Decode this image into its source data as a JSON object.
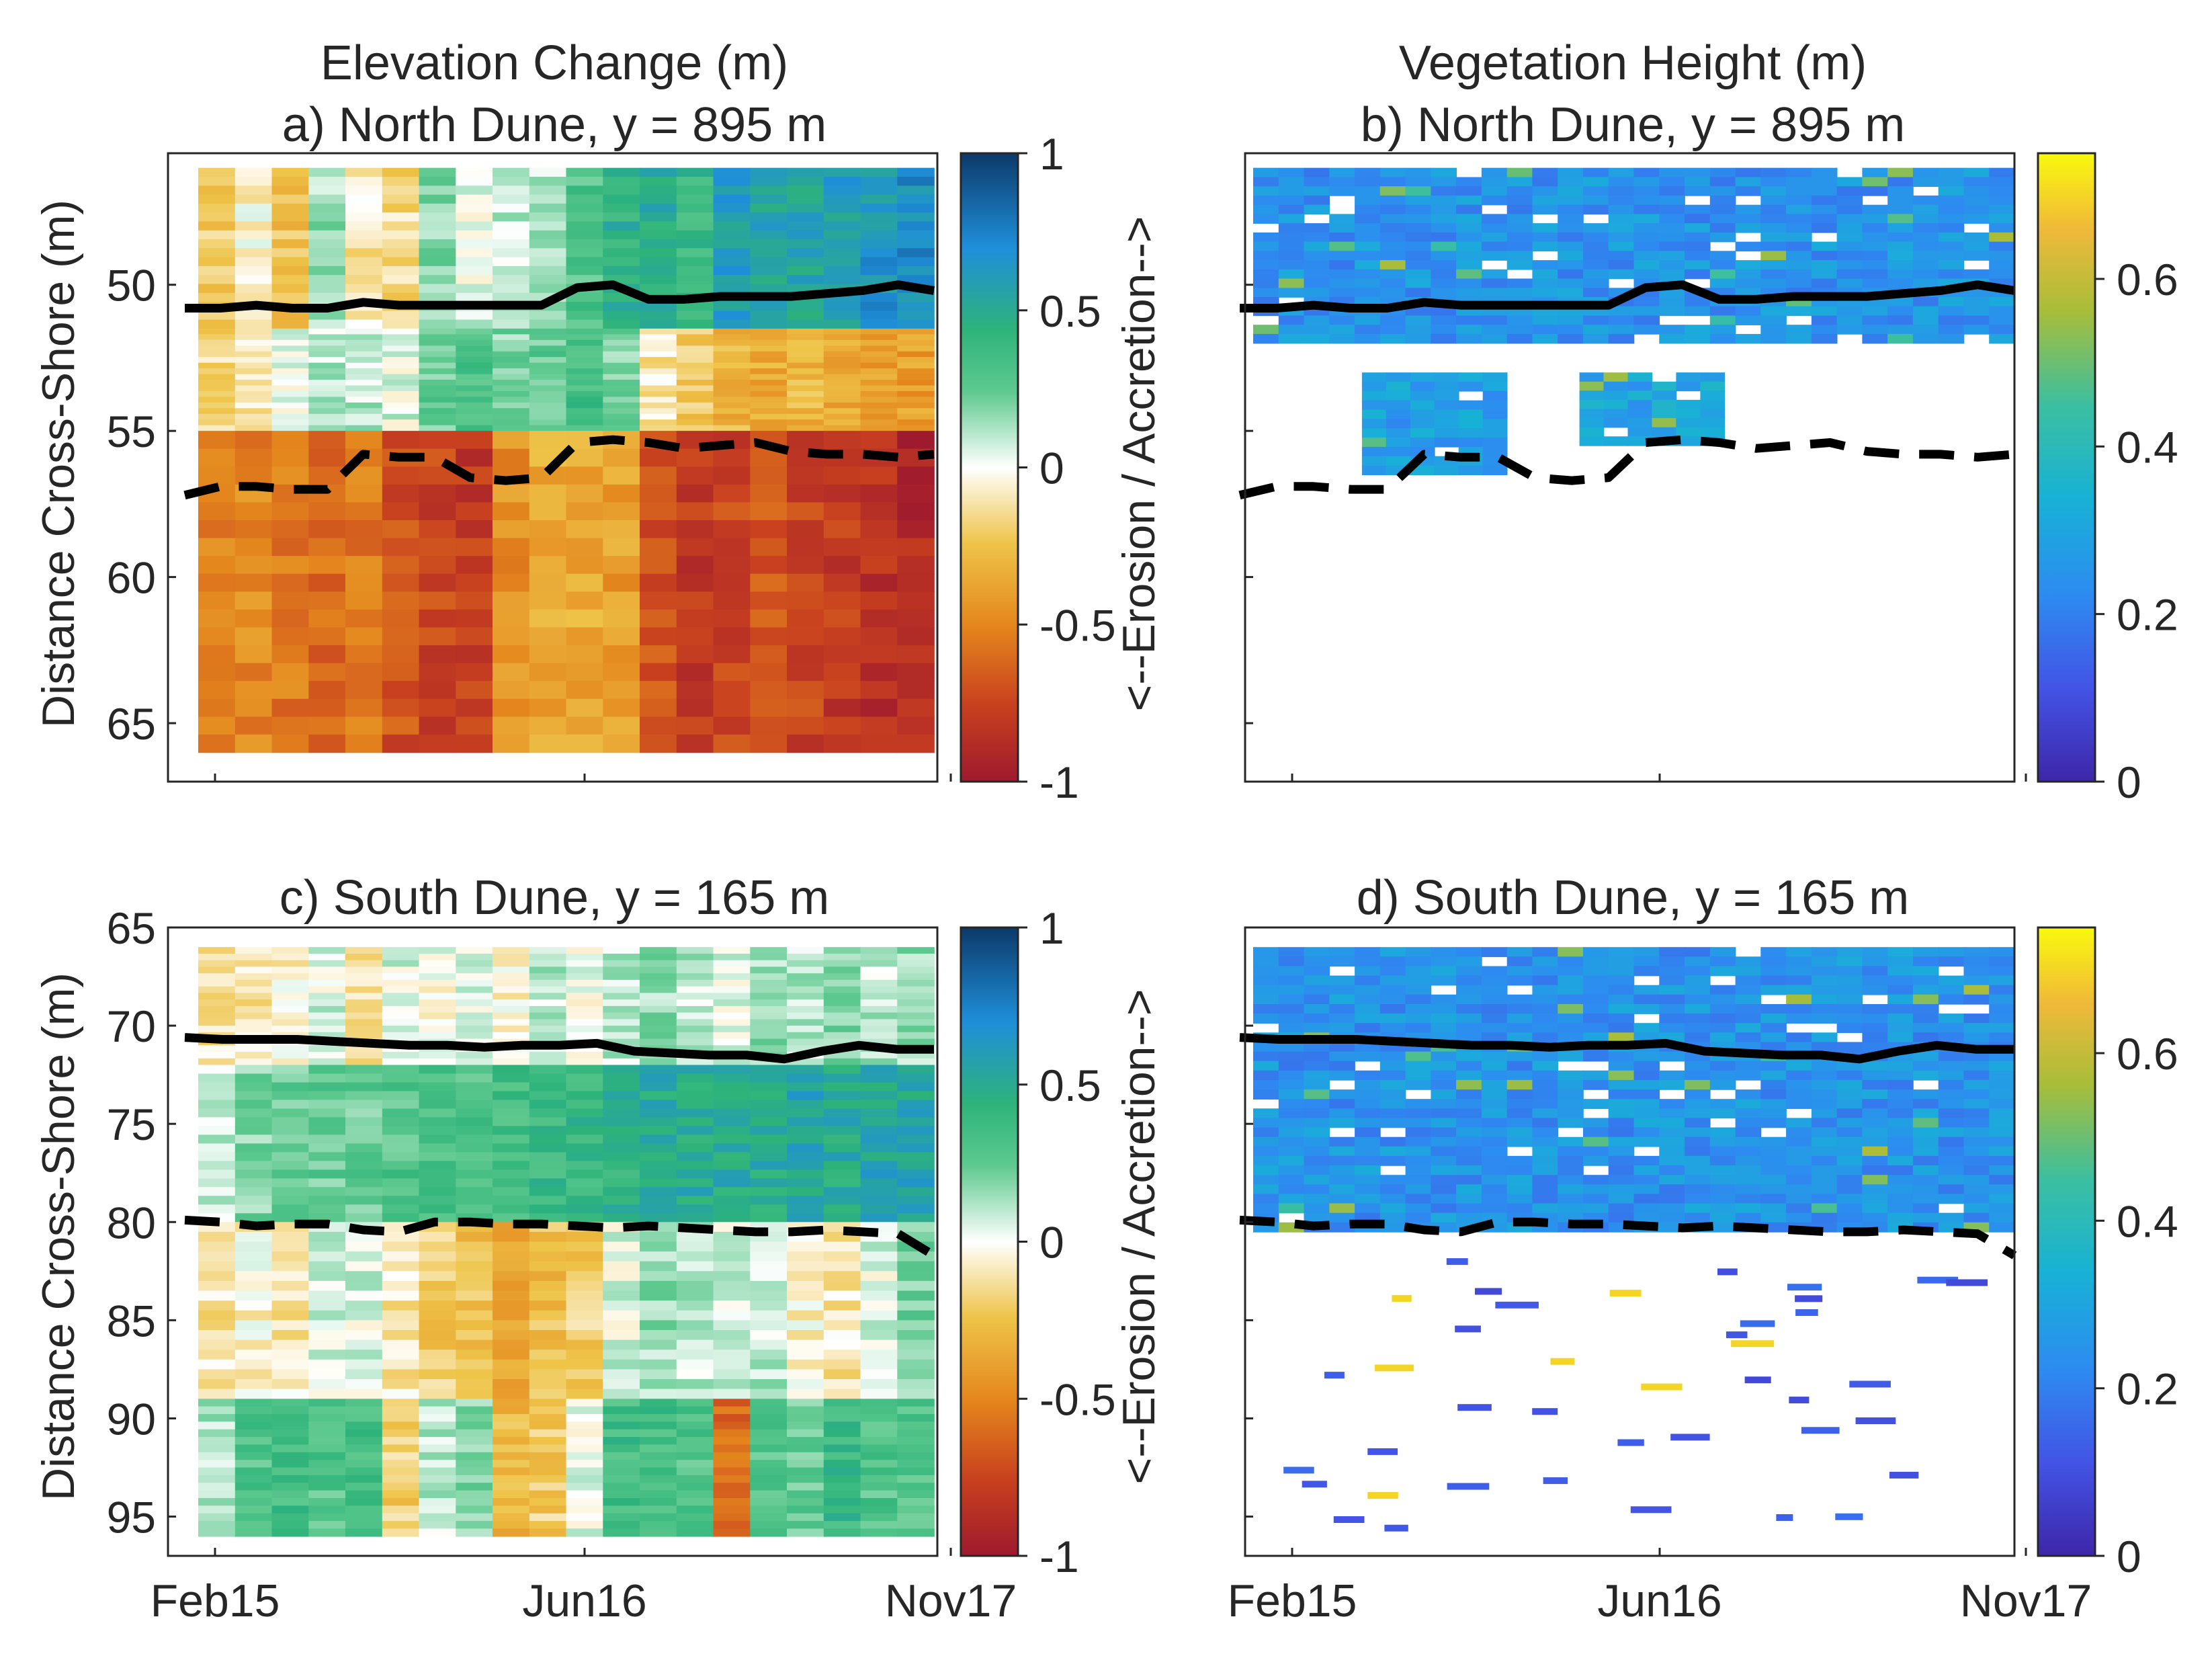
{
  "figure": {
    "colorbar_axis_label": "<--Erosion / Accretion-->",
    "x_axis_label": "",
    "x_ticks": [
      "Feb15",
      "Jun16",
      "Nov17"
    ]
  },
  "chart_data": [
    {
      "id": "a",
      "type": "heatmap",
      "title_top": "Elevation Change (m)",
      "title": "a) North Dune, y = 895 m",
      "xlabel": "",
      "ylabel": "Distance Cross-Shore (m)",
      "x_ticks": [
        "Feb15",
        "Jun16",
        "Nov17"
      ],
      "y_ticks": [
        50,
        55,
        60,
        65
      ],
      "ylim": [
        45.5,
        67
      ],
      "y_reversed": true,
      "colorbar": {
        "label": "<--Erosion / Accretion-->",
        "range": [
          -1,
          1
        ],
        "ticks": [
          "1",
          "0.5",
          "0",
          "-0.5",
          "-1"
        ],
        "colormap": "diverging brown-white-blue"
      },
      "row_boundaries": [
        46,
        51.5,
        55,
        66
      ],
      "column_values": [
        [
          -0.2,
          -0.05,
          -0.25,
          0.15,
          -0.1,
          -0.15,
          0.2,
          0.05,
          0.1,
          0.1,
          0.3,
          0.45,
          0.5,
          0.4,
          0.6,
          0.55,
          0.55,
          0.6,
          0.65,
          0.7
        ],
        [
          -0.15,
          -0.1,
          0.05,
          0.1,
          0.1,
          0.05,
          0.25,
          0.3,
          0.2,
          0.25,
          0.35,
          0.2,
          -0.1,
          -0.2,
          -0.3,
          -0.35,
          -0.3,
          -0.35,
          -0.4,
          -0.4
        ],
        [
          -0.5,
          -0.5,
          -0.55,
          -0.6,
          -0.55,
          -0.7,
          -0.75,
          -0.8,
          -0.45,
          -0.35,
          -0.35,
          -0.4,
          -0.7,
          -0.8,
          -0.75,
          -0.7,
          -0.75,
          -0.8,
          -0.85,
          -0.9
        ]
      ],
      "series": [
        {
          "name": "solid contour",
          "x": [
            0,
            1,
            2,
            3,
            4,
            5,
            6,
            7,
            8,
            9,
            10,
            11,
            12,
            13,
            14,
            15,
            16,
            17,
            18,
            19,
            20,
            21
          ],
          "y": [
            50.8,
            50.8,
            50.7,
            50.8,
            50.8,
            50.6,
            50.7,
            50.7,
            50.7,
            50.7,
            50.7,
            50.1,
            50.0,
            50.5,
            50.5,
            50.4,
            50.4,
            50.4,
            50.3,
            50.2,
            50.0,
            50.2
          ]
        },
        {
          "name": "dashed contour",
          "x": [
            0,
            1,
            2,
            3,
            4,
            5,
            6,
            7,
            8,
            9,
            10,
            11,
            12,
            13,
            14,
            15,
            16,
            17,
            18,
            19,
            20,
            21
          ],
          "y": [
            57.2,
            56.9,
            56.9,
            57.0,
            57.0,
            55.8,
            55.9,
            55.9,
            56.6,
            56.7,
            56.6,
            55.4,
            55.3,
            55.4,
            55.6,
            55.5,
            55.4,
            55.7,
            55.8,
            55.8,
            55.9,
            55.8
          ]
        }
      ]
    },
    {
      "id": "b",
      "type": "heatmap",
      "title_top": "Vegetation Height (m)",
      "title": "b) North Dune, y = 895 m",
      "xlabel": "",
      "ylabel": "",
      "x_ticks": [
        "Feb15",
        "Jun16",
        "Nov17"
      ],
      "ylim": [
        45.5,
        67
      ],
      "y_reversed": true,
      "colorbar": {
        "range": [
          0,
          0.75
        ],
        "ticks": [
          "0.6",
          "0.4",
          "0.2",
          "0"
        ],
        "colormap": "parula"
      },
      "patches": [
        {
          "x0": 0,
          "x1": 21,
          "y0": 46,
          "y1": 52,
          "value": 0.25
        },
        {
          "x0": 3,
          "x1": 7,
          "y0": 53,
          "y1": 56.5,
          "value": 0.28
        },
        {
          "x0": 9,
          "x1": 13,
          "y0": 53,
          "y1": 55.5,
          "value": 0.3
        }
      ],
      "series": [
        {
          "name": "solid contour",
          "x": [
            0,
            1,
            2,
            3,
            4,
            5,
            6,
            7,
            8,
            9,
            10,
            11,
            12,
            13,
            14,
            15,
            16,
            17,
            18,
            19,
            20,
            21
          ],
          "y": [
            50.8,
            50.8,
            50.7,
            50.8,
            50.8,
            50.6,
            50.7,
            50.7,
            50.7,
            50.7,
            50.7,
            50.1,
            50.0,
            50.5,
            50.5,
            50.4,
            50.4,
            50.4,
            50.3,
            50.2,
            50.0,
            50.2
          ]
        },
        {
          "name": "dashed contour",
          "x": [
            0,
            1,
            2,
            3,
            4,
            5,
            6,
            7,
            8,
            9,
            10,
            11,
            12,
            13,
            14,
            15,
            16,
            17,
            18,
            19,
            20,
            21
          ],
          "y": [
            57.2,
            56.9,
            56.9,
            57.0,
            57.0,
            55.8,
            55.9,
            55.9,
            56.6,
            56.7,
            56.6,
            55.4,
            55.3,
            55.4,
            55.6,
            55.5,
            55.4,
            55.7,
            55.8,
            55.8,
            55.9,
            55.8
          ]
        }
      ]
    },
    {
      "id": "c",
      "type": "heatmap",
      "title": "c) South Dune, y = 165 m",
      "xlabel": "",
      "ylabel": "Distance Cross-Shore (m)",
      "x_ticks": [
        "Feb15",
        "Jun16",
        "Nov17"
      ],
      "y_ticks": [
        65,
        70,
        75,
        80,
        85,
        90,
        95
      ],
      "ylim": [
        65,
        97
      ],
      "y_reversed": true,
      "colorbar": {
        "label": "<--Erosion / Accretion-->",
        "range": [
          -1,
          1
        ],
        "ticks": [
          "1",
          "0.5",
          "0",
          "-0.5",
          "-1"
        ],
        "colormap": "diverging brown-white-blue"
      },
      "row_boundaries": [
        66,
        72,
        80,
        89,
        96
      ],
      "column_values": [
        [
          -0.1,
          -0.1,
          -0.05,
          0.05,
          -0.1,
          0.05,
          0.0,
          0.05,
          -0.05,
          0.1,
          0.0,
          0.1,
          0.15,
          0.1,
          0.05,
          0.15,
          0.1,
          0.2,
          0.1,
          0.15
        ],
        [
          0.1,
          0.2,
          0.25,
          0.25,
          0.25,
          0.3,
          0.3,
          0.3,
          0.35,
          0.4,
          0.4,
          0.45,
          0.5,
          0.5,
          0.5,
          0.5,
          0.55,
          0.5,
          0.55,
          0.55
        ],
        [
          -0.1,
          -0.05,
          -0.1,
          0.05,
          0.05,
          -0.1,
          -0.2,
          -0.25,
          -0.35,
          -0.25,
          -0.2,
          0.05,
          0.15,
          0.1,
          0.05,
          0.1,
          -0.05,
          -0.1,
          0.05,
          0.2
        ],
        [
          0.1,
          0.3,
          0.35,
          0.3,
          0.35,
          -0.2,
          0.1,
          0.2,
          -0.3,
          -0.2,
          0.05,
          0.35,
          0.35,
          0.3,
          -0.6,
          0.3,
          0.25,
          0.4,
          0.3,
          0.3
        ]
      ],
      "series": [
        {
          "name": "solid contour",
          "x": [
            0,
            1,
            2,
            3,
            4,
            5,
            6,
            7,
            8,
            9,
            10,
            11,
            12,
            13,
            14,
            15,
            16,
            17,
            18,
            19,
            20
          ],
          "y": [
            70.6,
            70.7,
            70.7,
            70.7,
            70.8,
            70.9,
            71.0,
            71.0,
            71.1,
            71.0,
            71.0,
            70.9,
            71.3,
            71.4,
            71.5,
            71.5,
            71.7,
            71.3,
            71.0,
            71.2,
            71.2
          ]
        },
        {
          "name": "dashed contour",
          "x": [
            0,
            1,
            2,
            3,
            4,
            5,
            6,
            7,
            8,
            9,
            10,
            11,
            12,
            13,
            14,
            15,
            16,
            17,
            18,
            19,
            20,
            21
          ],
          "y": [
            79.9,
            80.0,
            80.2,
            80.1,
            80.1,
            80.4,
            80.5,
            80.0,
            80.0,
            80.1,
            80.1,
            80.2,
            80.3,
            80.2,
            80.3,
            80.4,
            80.5,
            80.5,
            80.4,
            80.5,
            80.6,
            81.7
          ]
        }
      ]
    },
    {
      "id": "d",
      "type": "heatmap",
      "title": "d) South Dune, y = 165 m",
      "xlabel": "",
      "ylabel": "",
      "x_ticks": [
        "Feb15",
        "Jun16",
        "Nov17"
      ],
      "ylim": [
        65,
        97
      ],
      "y_reversed": true,
      "colorbar": {
        "range": [
          0,
          0.75
        ],
        "ticks": [
          "0.6",
          "0.4",
          "0.2",
          "0"
        ],
        "colormap": "parula"
      },
      "patches": [
        {
          "x0": 0,
          "x1": 21,
          "y0": 66,
          "y1": 80.5,
          "value": 0.25
        }
      ],
      "series": [
        {
          "name": "solid contour",
          "x": [
            0,
            1,
            2,
            3,
            4,
            5,
            6,
            7,
            8,
            9,
            10,
            11,
            12,
            13,
            14,
            15,
            16,
            17,
            18,
            19,
            20
          ],
          "y": [
            70.6,
            70.7,
            70.7,
            70.7,
            70.8,
            70.9,
            71.0,
            71.0,
            71.1,
            71.0,
            71.0,
            70.9,
            71.3,
            71.4,
            71.5,
            71.5,
            71.7,
            71.3,
            71.0,
            71.2,
            71.2
          ]
        },
        {
          "name": "dashed contour",
          "x": [
            0,
            1,
            2,
            3,
            4,
            5,
            6,
            7,
            8,
            9,
            10,
            11,
            12,
            13,
            14,
            15,
            16,
            17,
            18,
            19,
            20,
            21
          ],
          "y": [
            79.9,
            80.0,
            80.2,
            80.1,
            80.1,
            80.4,
            80.5,
            80.0,
            80.0,
            80.1,
            80.1,
            80.2,
            80.3,
            80.2,
            80.3,
            80.4,
            80.5,
            80.5,
            80.4,
            80.5,
            80.6,
            81.7
          ]
        }
      ]
    }
  ]
}
